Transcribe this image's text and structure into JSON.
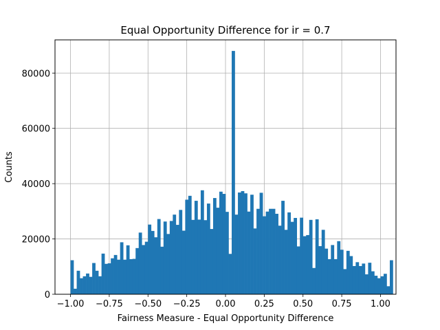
{
  "chart_data": {
    "type": "bar",
    "title": "Equal Opportunity Difference for ir = 0.7",
    "xlabel": "Fairness Measure - Equal Opportunity Difference",
    "ylabel": "Counts",
    "xlim": [
      -1.1,
      1.1
    ],
    "ylim": [
      0,
      92000
    ],
    "grid": true,
    "bar_color": "#1f77b4",
    "x_ticks": [
      -1.0,
      -0.75,
      -0.5,
      -0.25,
      0.0,
      0.25,
      0.5,
      0.75,
      1.0
    ],
    "x_tick_labels": [
      "−1.00",
      "−0.75",
      "−0.50",
      "−0.25",
      "0.00",
      "0.25",
      "0.50",
      "0.75",
      "1.00"
    ],
    "y_ticks": [
      0,
      20000,
      40000,
      60000,
      80000
    ],
    "y_tick_labels": [
      "0",
      "20000",
      "40000",
      "60000",
      "80000"
    ],
    "bin_start": -1.0,
    "bin_width": 0.02,
    "values": [
      12300,
      2000,
      8500,
      5800,
      6500,
      7500,
      6300,
      11300,
      8500,
      6500,
      14700,
      11000,
      11200,
      13000,
      14200,
      12500,
      18800,
      12500,
      17700,
      12700,
      12800,
      16700,
      22300,
      17800,
      19000,
      25200,
      22900,
      20600,
      27200,
      17200,
      26300,
      21800,
      26500,
      28800,
      25100,
      30500,
      23000,
      34200,
      35600,
      26900,
      33800,
      27000,
      37600,
      26800,
      32800,
      23600,
      34800,
      31300,
      37100,
      36300,
      29800,
      14600,
      88000,
      28800,
      36800,
      37300,
      36500,
      29900,
      36000,
      23800,
      30900,
      36700,
      28200,
      29900,
      30900,
      30900,
      29100,
      24800,
      33800,
      23300,
      29600,
      26200,
      27600,
      17300,
      27700,
      21000,
      21400,
      26900,
      9500,
      27100,
      17400,
      23300,
      16500,
      12700,
      17800,
      12700,
      19200,
      16100,
      9100,
      15700,
      13800,
      10200,
      11600,
      10200,
      11100,
      7200,
      11400,
      8300,
      6700,
      5800,
      6500,
      7400,
      2900,
      12300
    ]
  }
}
